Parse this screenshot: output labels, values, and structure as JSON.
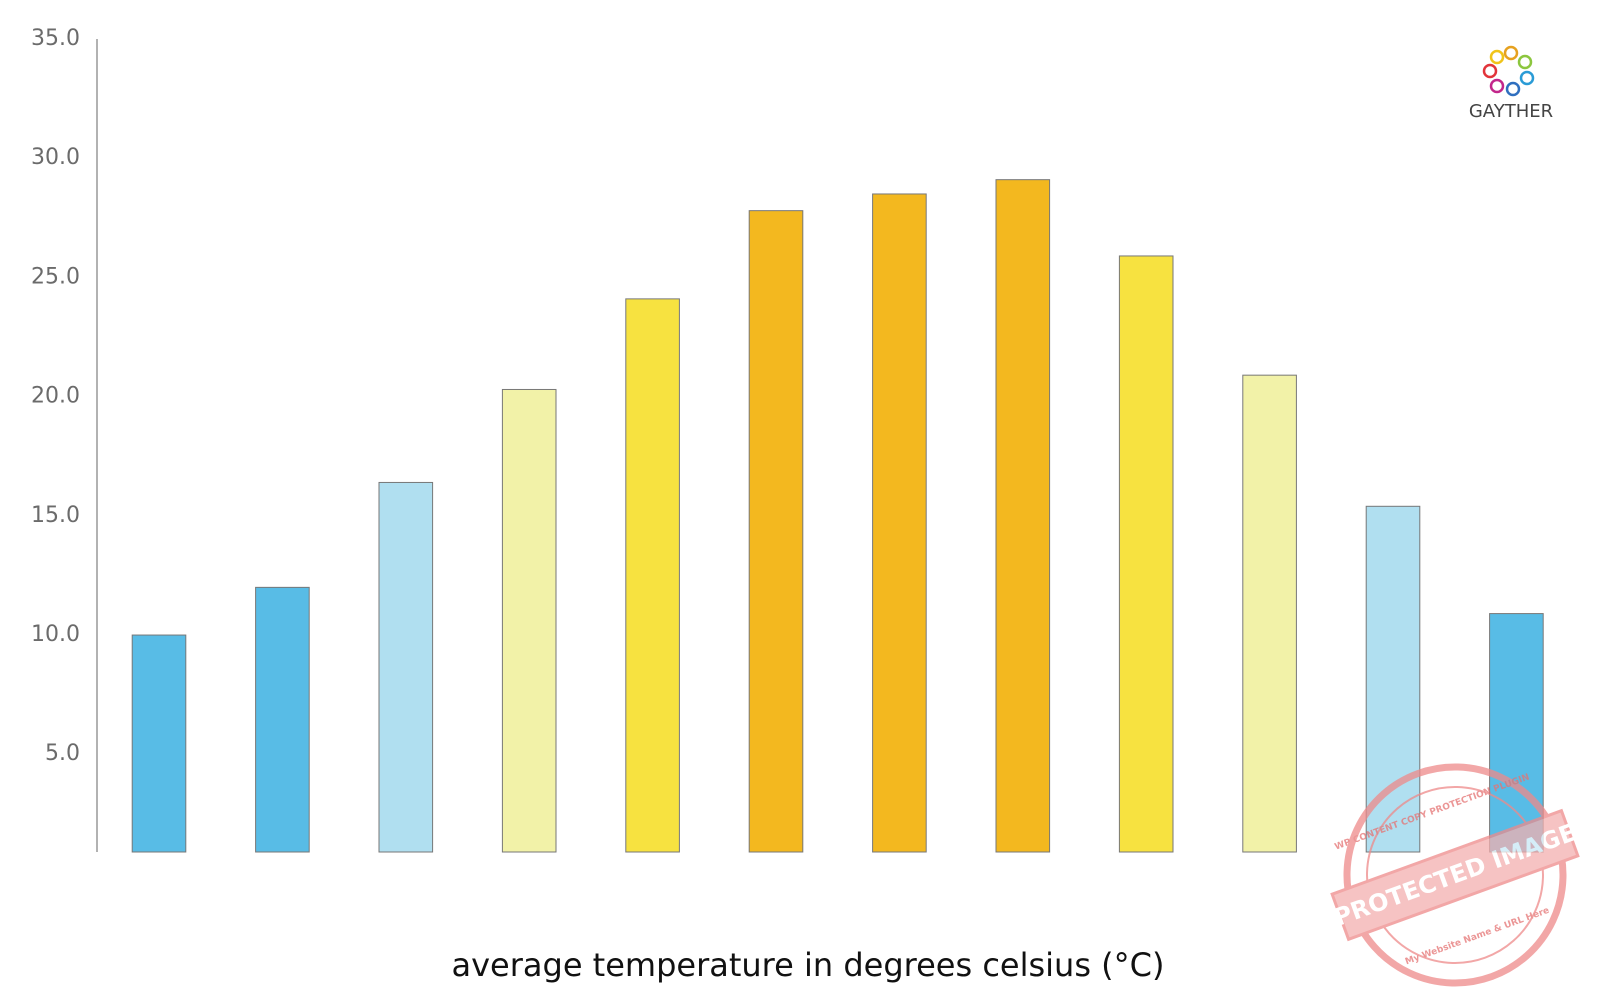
{
  "chart_data": {
    "type": "bar",
    "x_label": "average temperature in degrees celsius (°C)",
    "categories": [
      null,
      null,
      null,
      null,
      null,
      null,
      null,
      null,
      null,
      null,
      null,
      null
    ],
    "values": [
      10.0,
      12.0,
      16.4,
      20.3,
      24.1,
      27.8,
      28.5,
      29.1,
      25.9,
      20.9,
      15.4,
      10.9
    ],
    "colors": [
      "#58bce6",
      "#58bce6",
      "#b0dff0",
      "#f2f2a8",
      "#f7e240",
      "#f3b81f",
      "#f3b81f",
      "#f3b81f",
      "#f7e240",
      "#f2f2a8",
      "#b0dff0",
      "#58bce6"
    ],
    "ylim": [
      0.9,
      35
    ],
    "yticks": [
      {
        "value": 5,
        "label": "5.0"
      },
      {
        "value": 10,
        "label": "10.0"
      },
      {
        "value": 15,
        "label": "15.0"
      },
      {
        "value": 20,
        "label": "20.0"
      },
      {
        "value": 25,
        "label": "25.0"
      },
      {
        "value": 30,
        "label": "30.0"
      },
      {
        "value": 35,
        "label": "35.0"
      }
    ],
    "grid": false,
    "logo": "GAYTHER",
    "stamp": {
      "main": "PROTECTED IMAGE",
      "top": "WP CONTENT COPY PROTECTION PLUGIN",
      "bottom": "My Website Name & URL Here"
    }
  }
}
